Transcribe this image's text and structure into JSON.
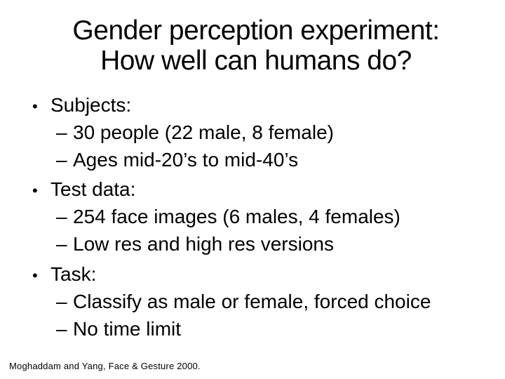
{
  "slide": {
    "title_lines": [
      "Gender perception experiment:",
      "How well can humans do?"
    ],
    "bullet_glyph": "•",
    "sub_glyph": "–",
    "bullets": [
      {
        "label": "Subjects:",
        "sub": [
          "30 people (22 male, 8 female)",
          "Ages mid-20’s to mid-40’s"
        ]
      },
      {
        "label": "Test data:",
        "sub": [
          "254 face images (6 males, 4 females)",
          "Low res and high res versions"
        ]
      },
      {
        "label": "Task:",
        "sub": [
          "Classify as male or female, forced choice",
          "No time limit"
        ]
      }
    ],
    "citation": "Moghaddam and Yang, Face & Gesture 2000.",
    "colors": {
      "background": "#ffffff",
      "text": "#000000"
    }
  }
}
